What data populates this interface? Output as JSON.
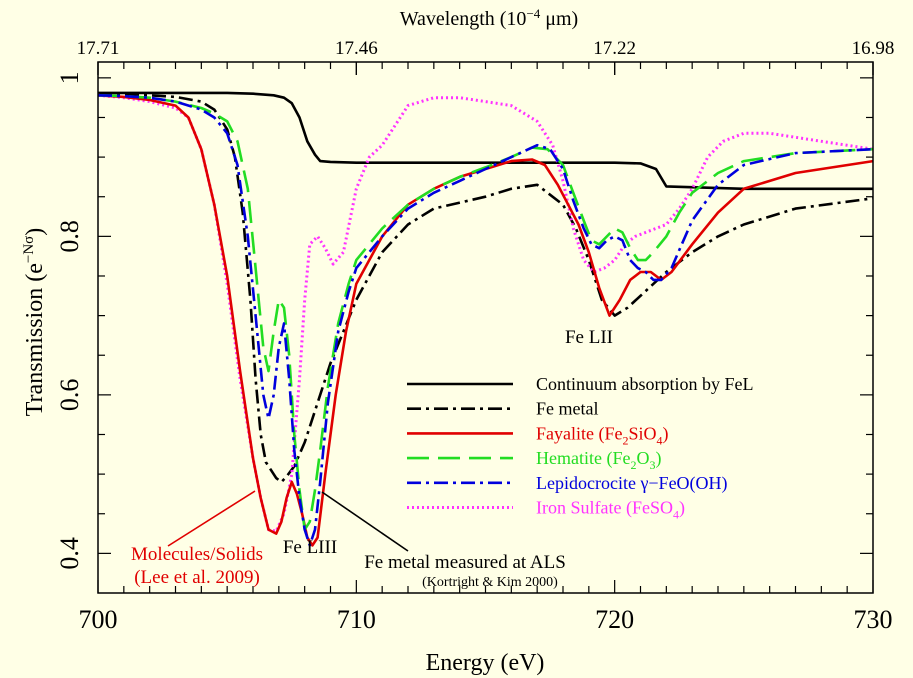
{
  "chart_data": {
    "type": "line",
    "xlabel": "Energy (eV)",
    "ylabel_main": "Transmission (e",
    "ylabel_sup": "−Nσ",
    "ylabel_end": ")",
    "top_xlabel_main": "Wavelength (10",
    "top_xlabel_sup": "−4",
    "top_xlabel_end": " μm)",
    "xlim": [
      700,
      730
    ],
    "ylim": [
      0.35,
      1.02
    ],
    "x_ticks": [
      "700",
      "710",
      "720",
      "730"
    ],
    "y_ticks": [
      "0.4",
      "0.6",
      "0.8",
      "1"
    ],
    "top_ticks": [
      "17.71",
      "17.46",
      "17.22",
      "16.98"
    ],
    "colors": {
      "background": "#ffffe6",
      "continuum": "#000000",
      "metal": "#000000",
      "fayalite": "#e00000",
      "hematite": "#22dd22",
      "lepidocrocite": "#0000dd",
      "sulfate": "#ff33ff"
    },
    "legend": {
      "placement": "lower-right",
      "entries": [
        {
          "key": "continuum",
          "style": "solid",
          "color": "#000000",
          "parts": [
            {
              "text": "Continuum absorption by FeL"
            }
          ]
        },
        {
          "key": "metal",
          "style": "dash-dot",
          "color": "#000000",
          "parts": [
            {
              "text": "Fe metal"
            }
          ]
        },
        {
          "key": "fayalite",
          "style": "solid",
          "color": "#e00000",
          "parts": [
            {
              "text": "Fayalite (Fe"
            },
            {
              "text": "2",
              "sub": true
            },
            {
              "text": "SiO"
            },
            {
              "text": "4",
              "sub": true
            },
            {
              "text": ")"
            }
          ]
        },
        {
          "key": "hematite",
          "style": "dashed",
          "color": "#22dd22",
          "parts": [
            {
              "text": "Hematite (Fe"
            },
            {
              "text": "2",
              "sub": true
            },
            {
              "text": "O"
            },
            {
              "text": "3",
              "sub": true
            },
            {
              "text": ")"
            }
          ]
        },
        {
          "key": "lepidocrocite",
          "style": "dash-dot",
          "color": "#0000dd",
          "parts": [
            {
              "text": "Lepidocrocite γ−FeO(OH)"
            }
          ]
        },
        {
          "key": "sulfate",
          "style": "dotted",
          "color": "#ff33ff",
          "parts": [
            {
              "text": "Iron Sulfate (FeSO"
            },
            {
              "text": "4",
              "sub": true
            },
            {
              "text": ")"
            }
          ]
        }
      ]
    },
    "annotations": {
      "fe_lii": "Fe LII",
      "fe_liii": "Fe LIII",
      "molecules_1": "Molecules/Solids",
      "molecules_2": "(Lee et al. 2009)",
      "als_1": "Fe metal measured at ALS",
      "als_2": "(Kortright & Kim 2000)"
    },
    "series": [
      {
        "key": "continuum",
        "style": "solid",
        "color": "#000000",
        "x": [
          700,
          701,
          703,
          704,
          705,
          706,
          706.8,
          707.2,
          707.5,
          707.8,
          708.1,
          708.4,
          708.6,
          709,
          710,
          712,
          715,
          718,
          720,
          721,
          721.6,
          722,
          725,
          730
        ],
        "y": [
          0.981,
          0.981,
          0.981,
          0.981,
          0.981,
          0.98,
          0.978,
          0.975,
          0.968,
          0.95,
          0.92,
          0.903,
          0.895,
          0.894,
          0.893,
          0.893,
          0.893,
          0.893,
          0.893,
          0.892,
          0.885,
          0.863,
          0.86,
          0.86
        ]
      },
      {
        "key": "metal",
        "style": "dash-dot",
        "color": "#000000",
        "x": [
          700,
          702,
          703,
          704,
          704.5,
          705,
          705.3,
          705.6,
          705.9,
          706.1,
          706.3,
          706.5,
          706.7,
          706.9,
          707.1,
          707.3,
          707.6,
          708,
          708.5,
          709,
          710,
          711,
          712,
          713,
          715,
          716,
          717,
          718,
          718.5,
          719,
          719.5,
          720,
          720.5,
          721,
          722,
          723,
          724,
          725,
          727,
          730
        ],
        "y": [
          0.978,
          0.978,
          0.976,
          0.97,
          0.96,
          0.935,
          0.9,
          0.83,
          0.72,
          0.62,
          0.55,
          0.515,
          0.505,
          0.495,
          0.49,
          0.497,
          0.51,
          0.54,
          0.59,
          0.64,
          0.72,
          0.78,
          0.815,
          0.835,
          0.85,
          0.86,
          0.865,
          0.84,
          0.81,
          0.77,
          0.72,
          0.7,
          0.71,
          0.725,
          0.755,
          0.78,
          0.8,
          0.815,
          0.835,
          0.848
        ]
      },
      {
        "key": "fayalite",
        "style": "solid",
        "color": "#e00000",
        "x": [
          700,
          701,
          702,
          703,
          703.5,
          704,
          704.5,
          705,
          705.5,
          706,
          706.3,
          706.6,
          706.9,
          707.1,
          707.3,
          707.5,
          707.7,
          707.9,
          708.1,
          708.3,
          708.5,
          708.8,
          709.2,
          709.6,
          710,
          711,
          712,
          713,
          714,
          715,
          716,
          716.8,
          717.3,
          717.8,
          718.2,
          718.6,
          719,
          719.4,
          719.8,
          720.2,
          720.6,
          721,
          721.4,
          721.8,
          722.2,
          723,
          724,
          725,
          727,
          730
        ],
        "y": [
          0.978,
          0.976,
          0.972,
          0.965,
          0.95,
          0.91,
          0.84,
          0.75,
          0.63,
          0.52,
          0.47,
          0.43,
          0.425,
          0.44,
          0.47,
          0.49,
          0.475,
          0.45,
          0.42,
          0.41,
          0.42,
          0.5,
          0.6,
          0.68,
          0.74,
          0.8,
          0.84,
          0.86,
          0.875,
          0.885,
          0.895,
          0.897,
          0.89,
          0.865,
          0.84,
          0.815,
          0.78,
          0.735,
          0.7,
          0.72,
          0.745,
          0.755,
          0.755,
          0.745,
          0.755,
          0.79,
          0.83,
          0.86,
          0.88,
          0.895
        ]
      },
      {
        "key": "hematite",
        "style": "dashed",
        "color": "#22dd22",
        "x": [
          700,
          701,
          702,
          703,
          704,
          704.5,
          705,
          705.4,
          705.8,
          706.1,
          706.4,
          706.6,
          706.8,
          707,
          707.2,
          707.4,
          707.6,
          707.8,
          708,
          708.2,
          708.4,
          708.6,
          708.9,
          709.3,
          709.7,
          710,
          711,
          712,
          713,
          714,
          715,
          716,
          716.8,
          717.4,
          718,
          718.4,
          718.8,
          719.1,
          719.4,
          719.7,
          720,
          720.3,
          720.6,
          720.9,
          721.2,
          721.5,
          722,
          722.5,
          723,
          724,
          725,
          727,
          730
        ],
        "y": [
          0.978,
          0.977,
          0.975,
          0.97,
          0.962,
          0.955,
          0.945,
          0.92,
          0.86,
          0.76,
          0.66,
          0.63,
          0.68,
          0.72,
          0.71,
          0.65,
          0.55,
          0.48,
          0.43,
          0.44,
          0.48,
          0.53,
          0.61,
          0.69,
          0.74,
          0.77,
          0.81,
          0.84,
          0.86,
          0.875,
          0.887,
          0.9,
          0.912,
          0.91,
          0.89,
          0.855,
          0.82,
          0.795,
          0.79,
          0.8,
          0.81,
          0.805,
          0.785,
          0.77,
          0.77,
          0.78,
          0.8,
          0.83,
          0.855,
          0.88,
          0.895,
          0.905,
          0.91
        ]
      },
      {
        "key": "lepidocrocite",
        "style": "dash-dot",
        "color": "#0000dd",
        "x": [
          700,
          701,
          702,
          703,
          704,
          704.5,
          705,
          705.4,
          705.8,
          706.1,
          706.4,
          706.6,
          706.8,
          707,
          707.2,
          707.4,
          707.6,
          707.8,
          708,
          708.2,
          708.4,
          708.6,
          708.9,
          709.3,
          709.7,
          710,
          711,
          712,
          713,
          714,
          715,
          716,
          717,
          717.5,
          718,
          718.4,
          718.8,
          719.1,
          719.4,
          719.7,
          720,
          720.3,
          720.6,
          720.9,
          721.2,
          721.5,
          721.8,
          722.2,
          722.6,
          723,
          724,
          725,
          727,
          730
        ],
        "y": [
          0.978,
          0.977,
          0.975,
          0.97,
          0.96,
          0.95,
          0.93,
          0.89,
          0.8,
          0.7,
          0.6,
          0.57,
          0.6,
          0.66,
          0.69,
          0.62,
          0.53,
          0.47,
          0.43,
          0.41,
          0.43,
          0.49,
          0.59,
          0.68,
          0.73,
          0.76,
          0.8,
          0.835,
          0.855,
          0.87,
          0.885,
          0.9,
          0.915,
          0.91,
          0.885,
          0.845,
          0.81,
          0.79,
          0.785,
          0.795,
          0.8,
          0.795,
          0.77,
          0.76,
          0.755,
          0.745,
          0.745,
          0.76,
          0.79,
          0.82,
          0.865,
          0.89,
          0.905,
          0.91
        ]
      },
      {
        "key": "sulfate",
        "style": "dotted",
        "color": "#ff33ff",
        "x": [
          700,
          701,
          702,
          703,
          703.5,
          704,
          704.5,
          705,
          705.5,
          706,
          706.3,
          706.6,
          706.9,
          707.2,
          707.5,
          707.8,
          708,
          708.2,
          708.5,
          708.8,
          709.1,
          709.5,
          710,
          710.5,
          711,
          711.5,
          712,
          713,
          714,
          715,
          716,
          717,
          717.6,
          718,
          718.4,
          718.8,
          719.2,
          719.6,
          720,
          720.4,
          720.8,
          721.2,
          721.6,
          722,
          722.5,
          723,
          723.6,
          724.2,
          725,
          726,
          727,
          728,
          730
        ],
        "y": [
          0.978,
          0.975,
          0.97,
          0.962,
          0.95,
          0.91,
          0.84,
          0.74,
          0.62,
          0.52,
          0.47,
          0.43,
          0.428,
          0.45,
          0.5,
          0.62,
          0.72,
          0.79,
          0.8,
          0.785,
          0.765,
          0.78,
          0.86,
          0.9,
          0.915,
          0.94,
          0.965,
          0.975,
          0.975,
          0.97,
          0.965,
          0.945,
          0.915,
          0.87,
          0.81,
          0.77,
          0.755,
          0.76,
          0.77,
          0.79,
          0.8,
          0.805,
          0.81,
          0.815,
          0.835,
          0.86,
          0.9,
          0.92,
          0.93,
          0.93,
          0.925,
          0.92,
          0.91
        ]
      }
    ]
  }
}
